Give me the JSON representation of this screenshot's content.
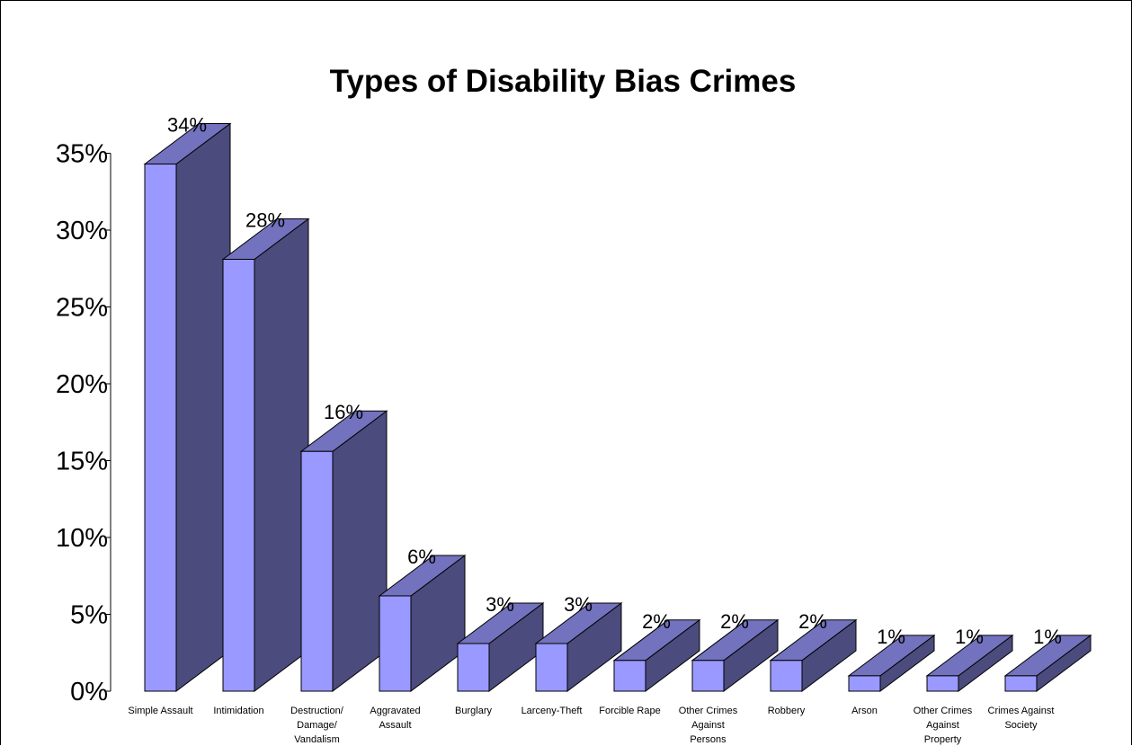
{
  "chart_data": {
    "type": "bar",
    "title": "Types of Disability Bias Crimes",
    "xlabel": "",
    "ylabel": "",
    "ylim": [
      0,
      35
    ],
    "yticks": [
      0,
      5,
      10,
      15,
      20,
      25,
      30,
      35
    ],
    "ytick_labels": [
      "0%",
      "5%",
      "10%",
      "15%",
      "20%",
      "25%",
      "30%",
      "35%"
    ],
    "categories": [
      "Simple Assault",
      "Intimidation",
      "Destruction/ Damage/ Vandalism",
      "Aggravated Assault",
      "Burglary",
      "Larceny-Theft",
      "Forcible Rape",
      "Other Crimes Against Persons",
      "Robbery",
      "Arson",
      "Other Crimes Against Property",
      "Crimes Against Society"
    ],
    "category_label_lines": [
      [
        "Simple Assault"
      ],
      [
        "Intimidation"
      ],
      [
        "Destruction/",
        "Damage/",
        "Vandalism"
      ],
      [
        "Aggravated",
        "Assault"
      ],
      [
        "Burglary"
      ],
      [
        "Larceny-Theft"
      ],
      [
        "Forcible Rape"
      ],
      [
        "Other Crimes",
        "Against",
        "Persons"
      ],
      [
        "Robbery"
      ],
      [
        "Arson"
      ],
      [
        "Other Crimes",
        "Against",
        "Property"
      ],
      [
        "Crimes Against",
        "Society"
      ]
    ],
    "values": [
      34.3,
      28.1,
      15.6,
      6.2,
      3.1,
      3.1,
      2.0,
      2.0,
      2.0,
      1.0,
      1.0,
      1.0
    ],
    "data_labels": [
      "34%",
      "28%",
      "16%",
      "6%",
      "3%",
      "3%",
      "2%",
      "2%",
      "2%",
      "1%",
      "1%",
      "1%"
    ],
    "grid": false,
    "legend": "none",
    "style": "3d-column",
    "colors": {
      "front": "#9999FF",
      "side": "#4B4B7D",
      "top": "#7272BE",
      "outline": "#000000"
    }
  }
}
